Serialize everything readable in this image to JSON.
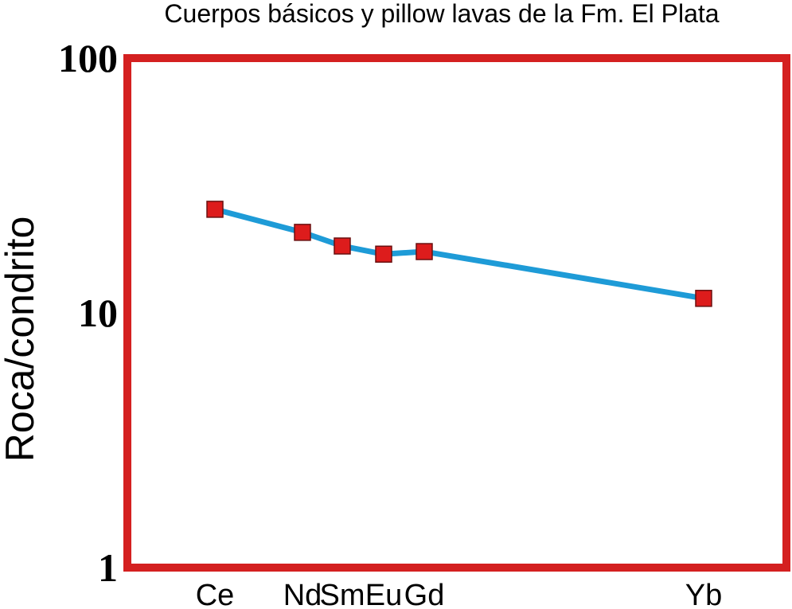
{
  "chart_data": {
    "type": "line",
    "title": "Cuerpos básicos y pillow lavas de la Fm. El Plata",
    "ylabel": "Roca/condrito",
    "categories": [
      "Ce",
      "Nd",
      "Sm",
      "Eu",
      "Gd",
      "Yb"
    ],
    "series": [
      {
        "color": "#1e9bd7",
        "marker_color": "#dd1c1c",
        "values": [
          25.5,
          20.7,
          18.3,
          17.0,
          17.4,
          11.4
        ]
      }
    ],
    "ylim": [
      1,
      100
    ],
    "yticks": [
      1,
      10,
      100
    ],
    "log_y": true,
    "frame_color": "#d42020"
  }
}
